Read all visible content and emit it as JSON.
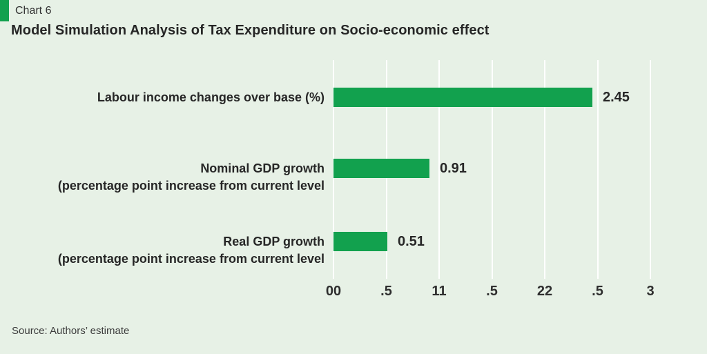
{
  "header": {
    "tag": "Chart 6",
    "title": "Model Simulation Analysis of Tax Expenditure on Socio-economic effect"
  },
  "chart_data": {
    "type": "bar",
    "orientation": "horizontal",
    "title": "Model Simulation Analysis of Tax Expenditure on Socio-economic effect",
    "categories": [
      [
        "Labour income changes over base (%)"
      ],
      [
        "Nominal GDP growth",
        "(percentage point increase from current level"
      ],
      [
        "Real GDP growth",
        "(percentage point increase from current level"
      ]
    ],
    "values": [
      2.45,
      0.91,
      0.51
    ],
    "value_labels": [
      "2.45",
      "0.91",
      "0.51"
    ],
    "xlim": [
      0,
      3
    ],
    "x_ticks": [
      0,
      0.5,
      1,
      1.5,
      2,
      2.5,
      3
    ],
    "x_tick_labels": [
      "00",
      ".5",
      "11",
      ".5",
      "22",
      ".5",
      "3"
    ],
    "grid": true,
    "legend": false,
    "colors": {
      "bar": "#12a14e",
      "background": "#e7f1e6",
      "gridline": "#ffffff",
      "text": "#262626"
    }
  },
  "source": "Source: Authors’ estimate"
}
